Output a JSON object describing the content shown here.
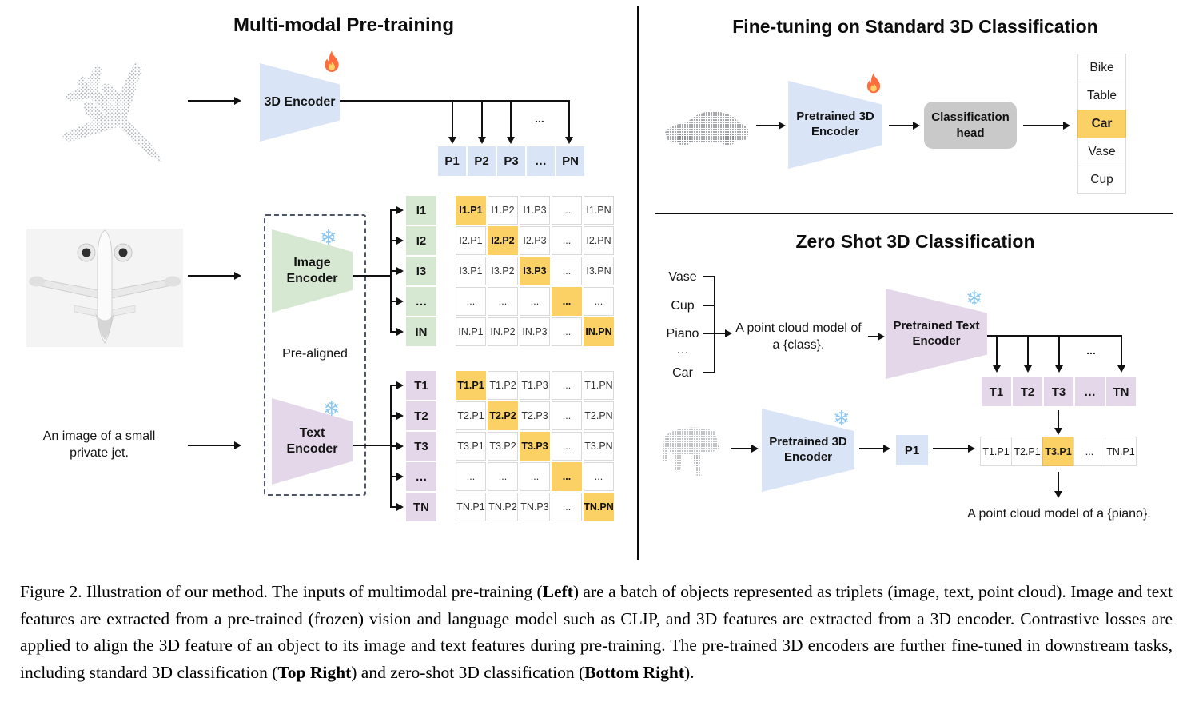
{
  "colors": {
    "blue": "#D9E4F6",
    "green": "#D6E8D2",
    "purple": "#E3D7E9",
    "orange": "#FBD166",
    "gray_head": "#C9C9C9",
    "line": "#111111"
  },
  "icons": {
    "snowflake_char": "❄",
    "fire_name": "fire-icon",
    "snowflake_name": "snowflake-icon"
  },
  "pretraining": {
    "title": "Multi-modal Pre-training",
    "text_sample": "An image of a small\nprivate jet.",
    "pre_aligned_label": "Pre-aligned",
    "encoder_3d_label": "3D Encoder",
    "image_encoder_label": "Image\nEncoder",
    "text_encoder_label": "Text\nEncoder",
    "ellipsis": "...",
    "p_row": [
      "P1",
      "P2",
      "P3",
      "…",
      "PN"
    ],
    "i_col": [
      "I1",
      "I2",
      "I3",
      "…",
      "IN"
    ],
    "t_col": [
      "T1",
      "T2",
      "T3",
      "…",
      "TN"
    ],
    "i_matrix": [
      [
        "I1.P1",
        "I1.P2",
        "I1.P3",
        "...",
        "I1.PN"
      ],
      [
        "I2.P1",
        "I2.P2",
        "I2.P3",
        "...",
        "I2.PN"
      ],
      [
        "I3.P1",
        "I3.P2",
        "I3.P3",
        "...",
        "I3.PN"
      ],
      [
        "...",
        "...",
        "...",
        "...",
        "..."
      ],
      [
        "IN.P1",
        "IN.P2",
        "IN.P3",
        "...",
        "IN.PN"
      ]
    ],
    "t_matrix": [
      [
        "T1.P1",
        "T1.P2",
        "T1.P3",
        "...",
        "T1.PN"
      ],
      [
        "T2.P1",
        "T2.P2",
        "T2.P3",
        "...",
        "T2.PN"
      ],
      [
        "T3.P1",
        "T3.P2",
        "T3.P3",
        "...",
        "T3.PN"
      ],
      [
        "...",
        "...",
        "...",
        "...",
        "..."
      ],
      [
        "TN.P1",
        "TN.P2",
        "TN.P3",
        "...",
        "TN.PN"
      ]
    ]
  },
  "finetune": {
    "title": "Fine-tuning on Standard 3D Classification",
    "encoder_label": "Pretrained 3D\nEncoder",
    "head_label": "Classification\nhead",
    "classes": [
      "Bike",
      "Table",
      "Car",
      "Vase",
      "Cup"
    ],
    "predicted_index": 2
  },
  "zeroshot": {
    "title": "Zero Shot 3D Classification",
    "class_words": [
      "Vase",
      "Cup",
      "Piano",
      "…",
      "Car"
    ],
    "prompt": "A point cloud model of\na {class}.",
    "text_encoder_label": "Pretrained Text\nEncoder",
    "encoder_3d_label": "Pretrained 3D\nEncoder",
    "ellipsis": "...",
    "t_row": [
      "T1",
      "T2",
      "T3",
      "…",
      "TN"
    ],
    "p_cell": "P1",
    "result_row": [
      "T1.P1",
      "T2.P1",
      "T3.P1",
      "...",
      "TN.P1"
    ],
    "result_highlight_index": 2,
    "output_text": "A point cloud model of a {piano}."
  },
  "caption": {
    "segments": [
      {
        "text": "Figure 2. Illustration of our method. The inputs of multimodal pre-training (",
        "bold": false
      },
      {
        "text": "Left",
        "bold": true
      },
      {
        "text": ") are a batch of objects represented as triplets (image, text, point cloud). Image and text features are extracted from a pre-trained (frozen) vision and language model such as CLIP, and 3D features are extracted from a 3D encoder. Contrastive losses are applied to align the 3D feature of an object to its image and text features during pre-training. The pre-trained 3D encoders are further fine-tuned in downstream tasks, including standard 3D classification (",
        "bold": false
      },
      {
        "text": "Top Right",
        "bold": true
      },
      {
        "text": ") and zero-shot 3D classification (",
        "bold": false
      },
      {
        "text": "Bottom Right",
        "bold": true
      },
      {
        "text": ").",
        "bold": false
      }
    ]
  }
}
